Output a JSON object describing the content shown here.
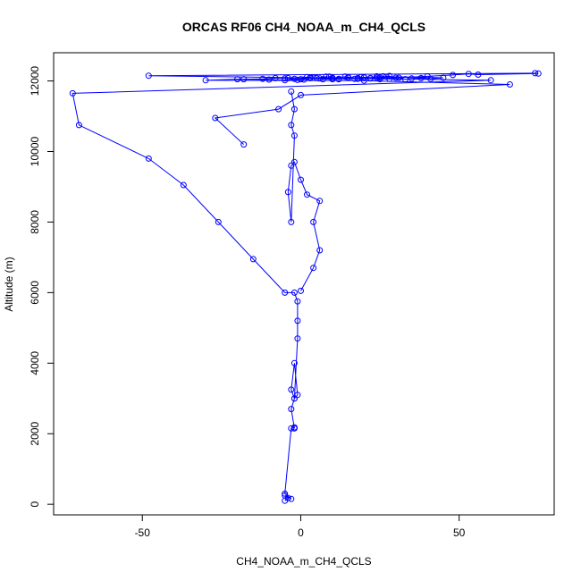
{
  "chart_data": {
    "type": "line",
    "title": "ORCAS RF06 CH4_NOAA_m_CH4_QCLS",
    "xlabel": "CH4_NOAA_m_CH4_QCLS",
    "ylabel": "Altitude (m)",
    "xlim": [
      -78,
      80
    ],
    "ylim": [
      -300,
      12800
    ],
    "xticks": [
      -50,
      0,
      50
    ],
    "yticks": [
      0,
      2000,
      4000,
      6000,
      8000,
      10000,
      12000
    ],
    "grid": false,
    "color": "#0000ff",
    "series": [
      {
        "x": [
          -5,
          -4,
          -5,
          -3,
          -5,
          -3,
          -2,
          -2,
          -3,
          -2,
          -1,
          -2,
          -3,
          -2,
          -1,
          -1,
          -1,
          -2,
          -5,
          -15,
          -26,
          -37,
          -48,
          -70,
          -72,
          60,
          -48,
          74,
          75,
          56,
          53,
          48,
          40,
          30,
          20,
          10,
          3,
          -5,
          -10,
          -20,
          -30,
          20,
          66,
          0,
          -7,
          -27,
          -18
        ],
        "y": [
          100,
          180,
          250,
          150,
          300,
          2150,
          2180,
          2150,
          2700,
          3000,
          3100,
          4000,
          3250,
          3000,
          4700,
          5200,
          5750,
          6000,
          6000,
          6950,
          8000,
          9050,
          9800,
          10750,
          11650,
          12020,
          12150,
          12220,
          12210,
          12180,
          12200,
          12170,
          12130,
          12090,
          12100,
          12050,
          12080,
          12020,
          12040,
          12050,
          12020,
          12010,
          11900,
          11600,
          11200,
          10950,
          10200
        ]
      },
      {
        "x": [
          0,
          4,
          6,
          4,
          6,
          2,
          0,
          -2,
          -3,
          -4,
          -3,
          -2,
          -3,
          -2,
          -3
        ],
        "y": [
          6050,
          6700,
          7200,
          8000,
          8600,
          8780,
          9200,
          9700,
          9600,
          8850,
          8000,
          10450,
          10750,
          11200,
          11700
        ]
      },
      {
        "x": [
          -18,
          -12,
          -8,
          -5,
          0,
          3,
          5,
          8,
          10,
          12,
          15,
          18,
          20,
          22,
          24,
          26,
          28,
          31,
          33,
          35,
          38,
          41,
          45,
          27,
          25,
          24,
          22,
          20,
          18,
          14,
          10,
          7,
          4,
          2,
          -1,
          -2,
          -4,
          1,
          3,
          6,
          9,
          12,
          15,
          17,
          19,
          22,
          25,
          28
        ],
        "y": [
          12050,
          12060,
          12080,
          12070,
          12050,
          12100,
          12080,
          12120,
          12090,
          12060,
          12110,
          12080,
          12100,
          12070,
          12090,
          12130,
          12060,
          12090,
          12050,
          12070,
          12080,
          12060,
          12090,
          12120,
          12050,
          12130,
          12080,
          12100,
          12060,
          12120,
          12080,
          12050,
          12090,
          12110,
          12030,
          12060,
          12080,
          12040,
          12100,
          12070,
          12120,
          12050,
          12090,
          12060,
          12110,
          12080,
          12100,
          12140
        ]
      }
    ]
  }
}
